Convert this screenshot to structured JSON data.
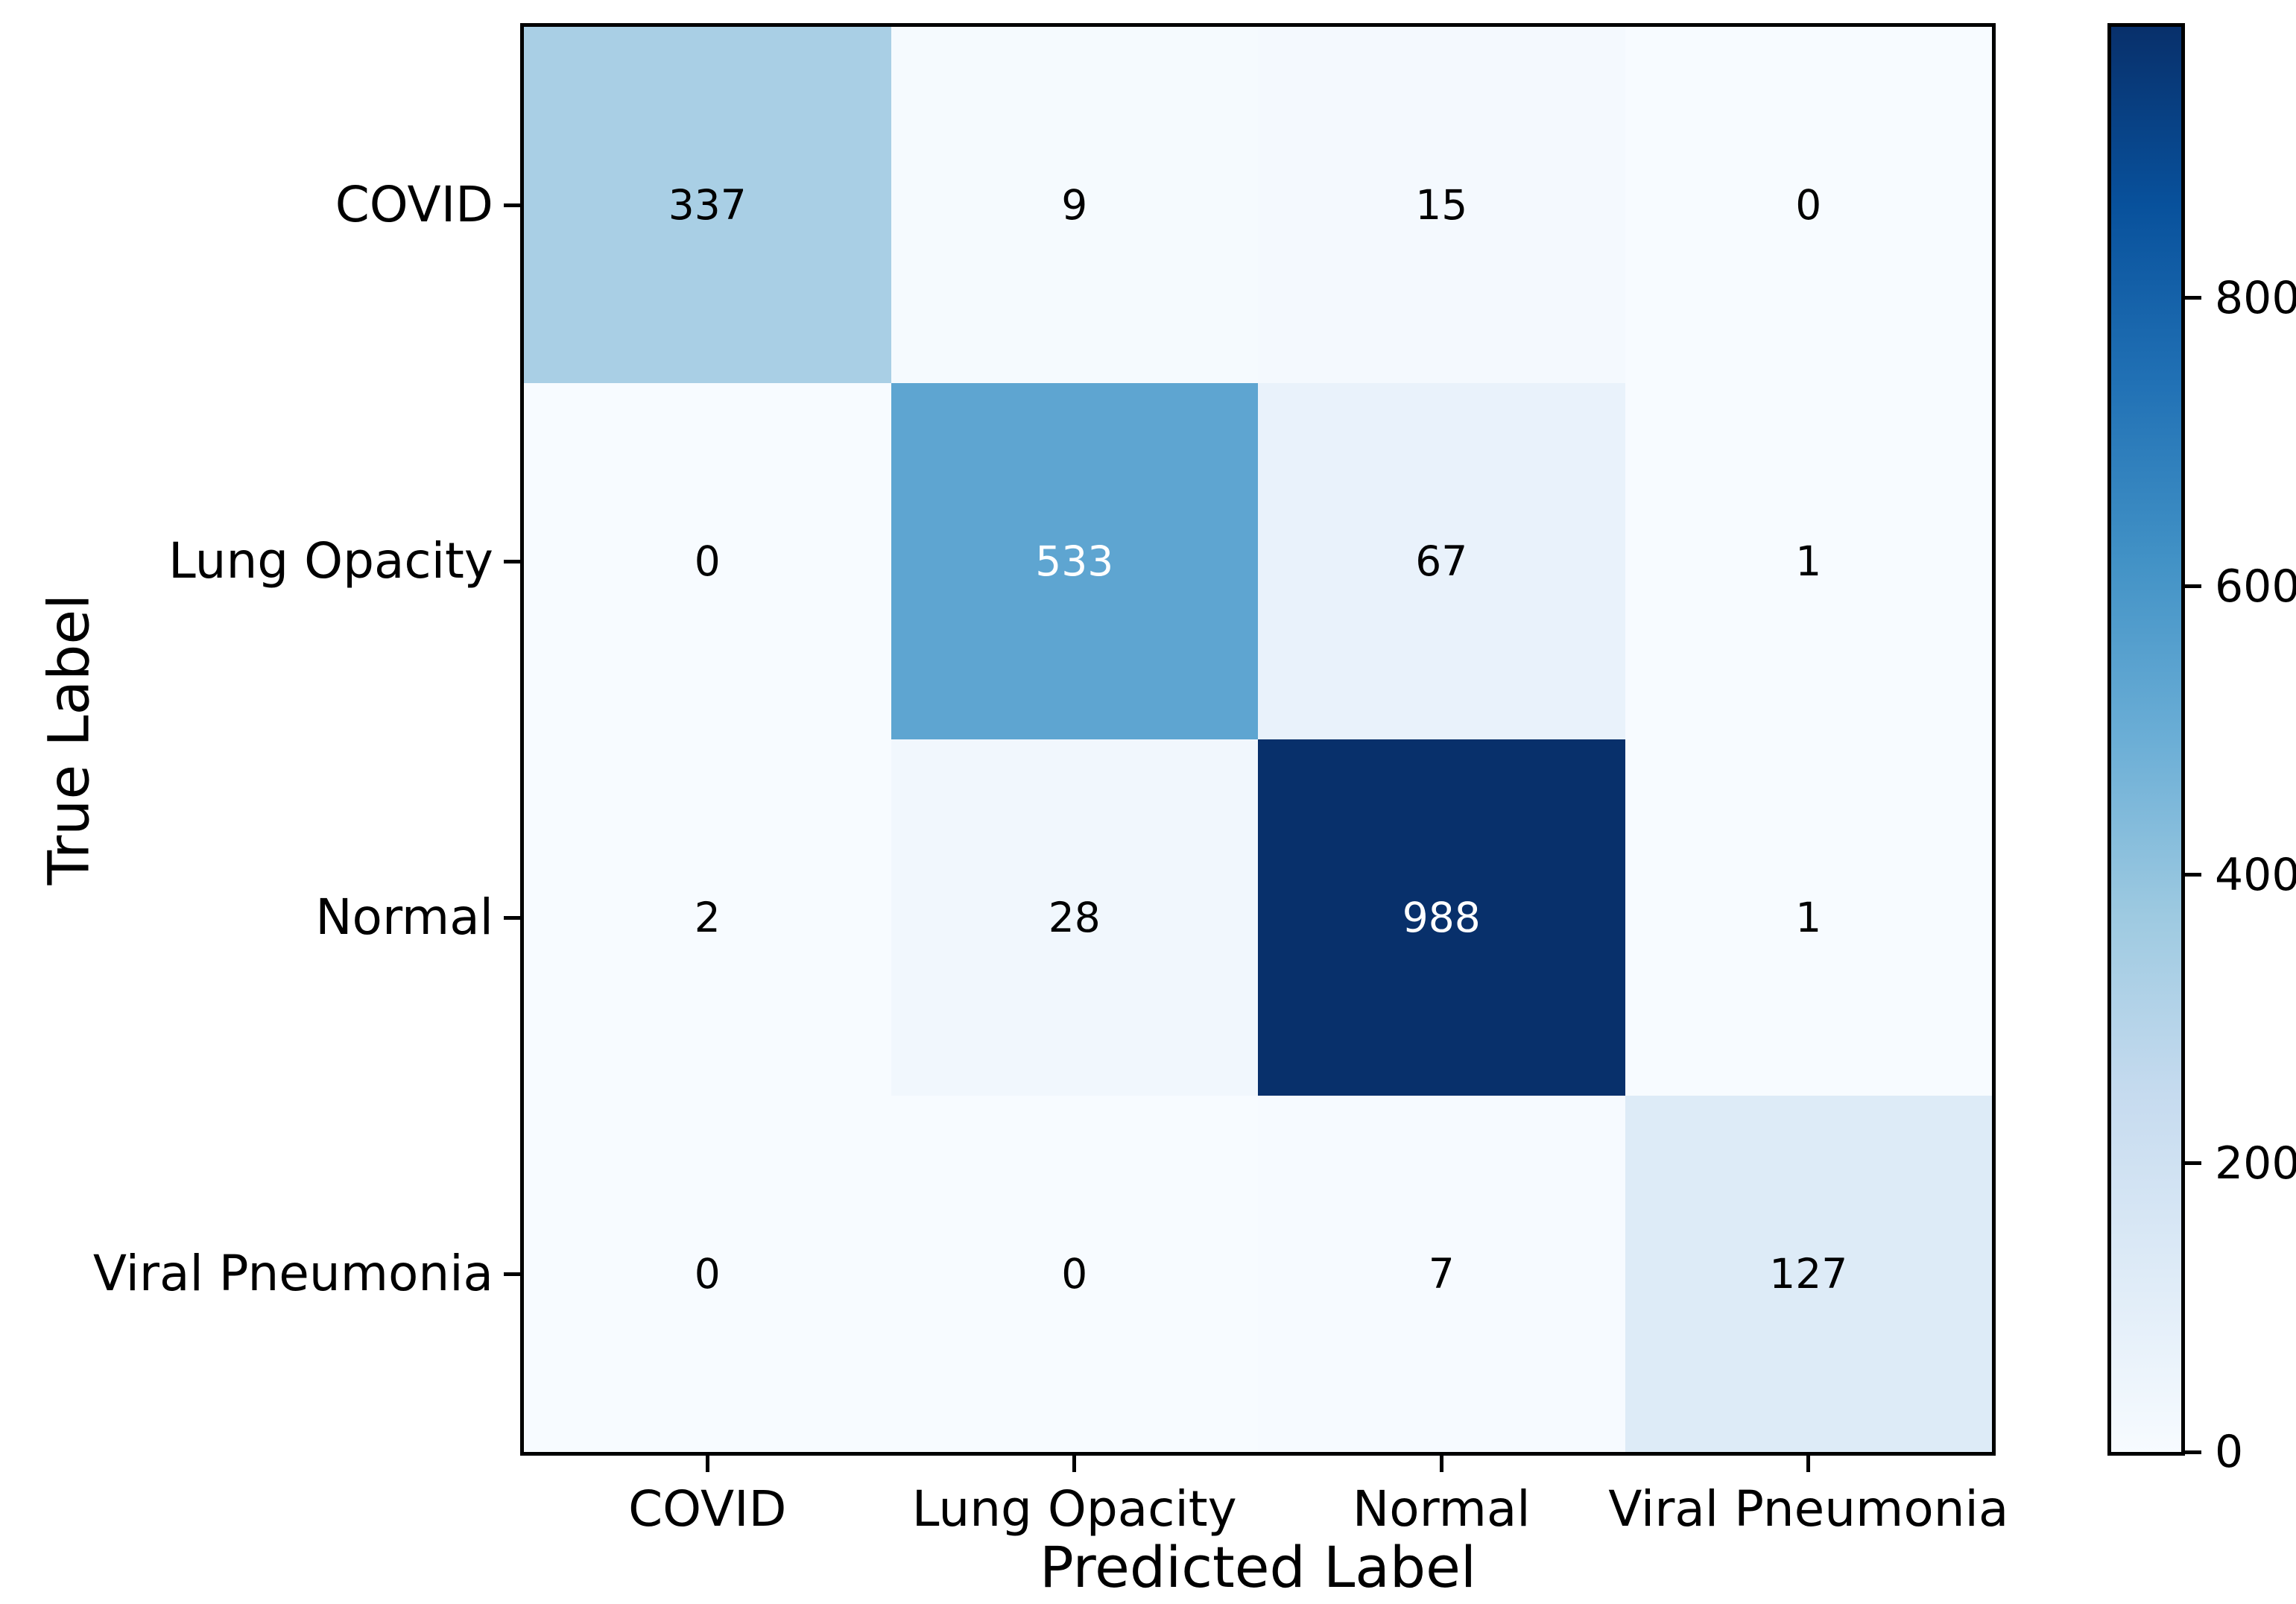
{
  "figure": {
    "background": "#ffffff",
    "spine_color": "#000000"
  },
  "chart_data": {
    "type": "heatmap",
    "title": "",
    "xlabel": "Predicted Label",
    "ylabel": "True Label",
    "x_categories": [
      "COVID",
      "Lung Opacity",
      "Normal",
      "Viral Pneumonia"
    ],
    "y_categories": [
      "COVID",
      "Lung Opacity",
      "Normal",
      "Viral Pneumonia"
    ],
    "matrix": [
      [
        337,
        9,
        15,
        0
      ],
      [
        0,
        533,
        67,
        1
      ],
      [
        2,
        28,
        988,
        1
      ],
      [
        0,
        0,
        7,
        127
      ]
    ],
    "vmin": 0,
    "vmax": 988,
    "colormap": "Blues",
    "colormap_stops": [
      "#f7fbff",
      "#deebf7",
      "#c6dbef",
      "#9ecae1",
      "#6baed6",
      "#4292c6",
      "#2171b5",
      "#08519c",
      "#08306b"
    ],
    "colorbar_ticks": [
      0,
      200,
      400,
      600,
      800
    ],
    "colorbar_position": "right",
    "grid": false,
    "cell_text_color_low": "#000000",
    "cell_text_color_high": "#ffffff"
  }
}
